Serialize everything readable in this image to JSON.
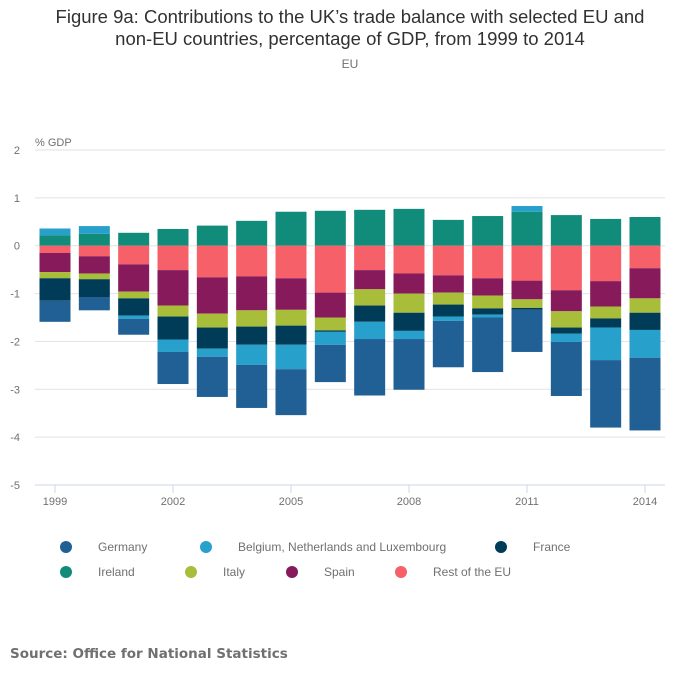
{
  "header": {
    "title_line1": "Figure 9a: Contributions to the UK’s trade balance with selected EU and",
    "title_line2": "non-EU countries, percentage of GDP, from 1999 to 2014",
    "subtitle": "EU"
  },
  "source": "Source: Office for National Statistics",
  "chart_data": {
    "type": "bar",
    "stacked": true,
    "title": "Figure 9a: Contributions to the UK’s trade balance with selected EU and non-EU countries, percentage of GDP, from 1999 to 2014",
    "subtitle": "EU",
    "xlabel": "",
    "ylabel": "% GDP",
    "ylim": [
      -5,
      2
    ],
    "yticks": [
      2,
      1,
      0,
      -1,
      -2,
      -3,
      -4,
      -5
    ],
    "xticks": [
      "1999",
      "2002",
      "2005",
      "2008",
      "2011",
      "2014"
    ],
    "grid": true,
    "legend_position": "bottom",
    "categories": [
      "1999",
      "2000",
      "2001",
      "2002",
      "2003",
      "2004",
      "2005",
      "2006",
      "2007",
      "2008",
      "2009",
      "2010",
      "2011",
      "2012",
      "2013",
      "2014"
    ],
    "series": [
      {
        "name": "Germany",
        "color": "#206095",
        "values": [
          -0.44,
          -0.27,
          -0.33,
          -0.67,
          -0.84,
          -0.9,
          -0.96,
          -0.78,
          -1.18,
          -1.06,
          -0.97,
          -1.14,
          -0.88,
          -1.13,
          -1.41,
          -1.52
        ]
      },
      {
        "name": "Belgium, Netherlands and Luxembourg",
        "color": "#27a0cc",
        "values": [
          0.14,
          0.16,
          -0.07,
          -0.26,
          -0.17,
          -0.42,
          -0.51,
          -0.27,
          -0.36,
          -0.17,
          -0.09,
          -0.06,
          0.12,
          -0.17,
          -0.68,
          -0.58
        ]
      },
      {
        "name": "France",
        "color": "#003c57",
        "values": [
          -0.47,
          -0.38,
          -0.36,
          -0.48,
          -0.44,
          -0.38,
          -0.4,
          -0.03,
          -0.34,
          -0.38,
          -0.25,
          -0.13,
          -0.04,
          -0.13,
          -0.19,
          -0.36
        ]
      },
      {
        "name": "Ireland",
        "color": "#118c7b",
        "values": [
          0.22,
          0.25,
          0.27,
          0.35,
          0.42,
          0.52,
          0.71,
          0.73,
          0.75,
          0.77,
          0.54,
          0.62,
          0.71,
          0.64,
          0.56,
          0.6
        ]
      },
      {
        "name": "Italy",
        "color": "#a8bd3a",
        "values": [
          -0.13,
          -0.12,
          -0.14,
          -0.23,
          -0.29,
          -0.34,
          -0.33,
          -0.27,
          -0.34,
          -0.4,
          -0.25,
          -0.27,
          -0.18,
          -0.34,
          -0.25,
          -0.3
        ]
      },
      {
        "name": "Spain",
        "color": "#871a5b",
        "values": [
          -0.4,
          -0.36,
          -0.57,
          -0.74,
          -0.76,
          -0.71,
          -0.66,
          -0.52,
          -0.4,
          -0.42,
          -0.36,
          -0.36,
          -0.39,
          -0.44,
          -0.53,
          -0.63
        ]
      },
      {
        "name": "Rest of the EU",
        "color": "#f66068",
        "values": [
          -0.15,
          -0.22,
          -0.39,
          -0.51,
          -0.66,
          -0.64,
          -0.68,
          -0.98,
          -0.51,
          -0.58,
          -0.62,
          -0.68,
          -0.73,
          -0.93,
          -0.74,
          -0.47
        ]
      }
    ],
    "stack_order_negative": [
      "Rest of the EU",
      "Spain",
      "Italy",
      "France",
      "Belgium, Netherlands and Luxembourg",
      "Germany"
    ],
    "stack_order_positive": [
      "Ireland",
      "Belgium, Netherlands and Luxembourg"
    ]
  }
}
